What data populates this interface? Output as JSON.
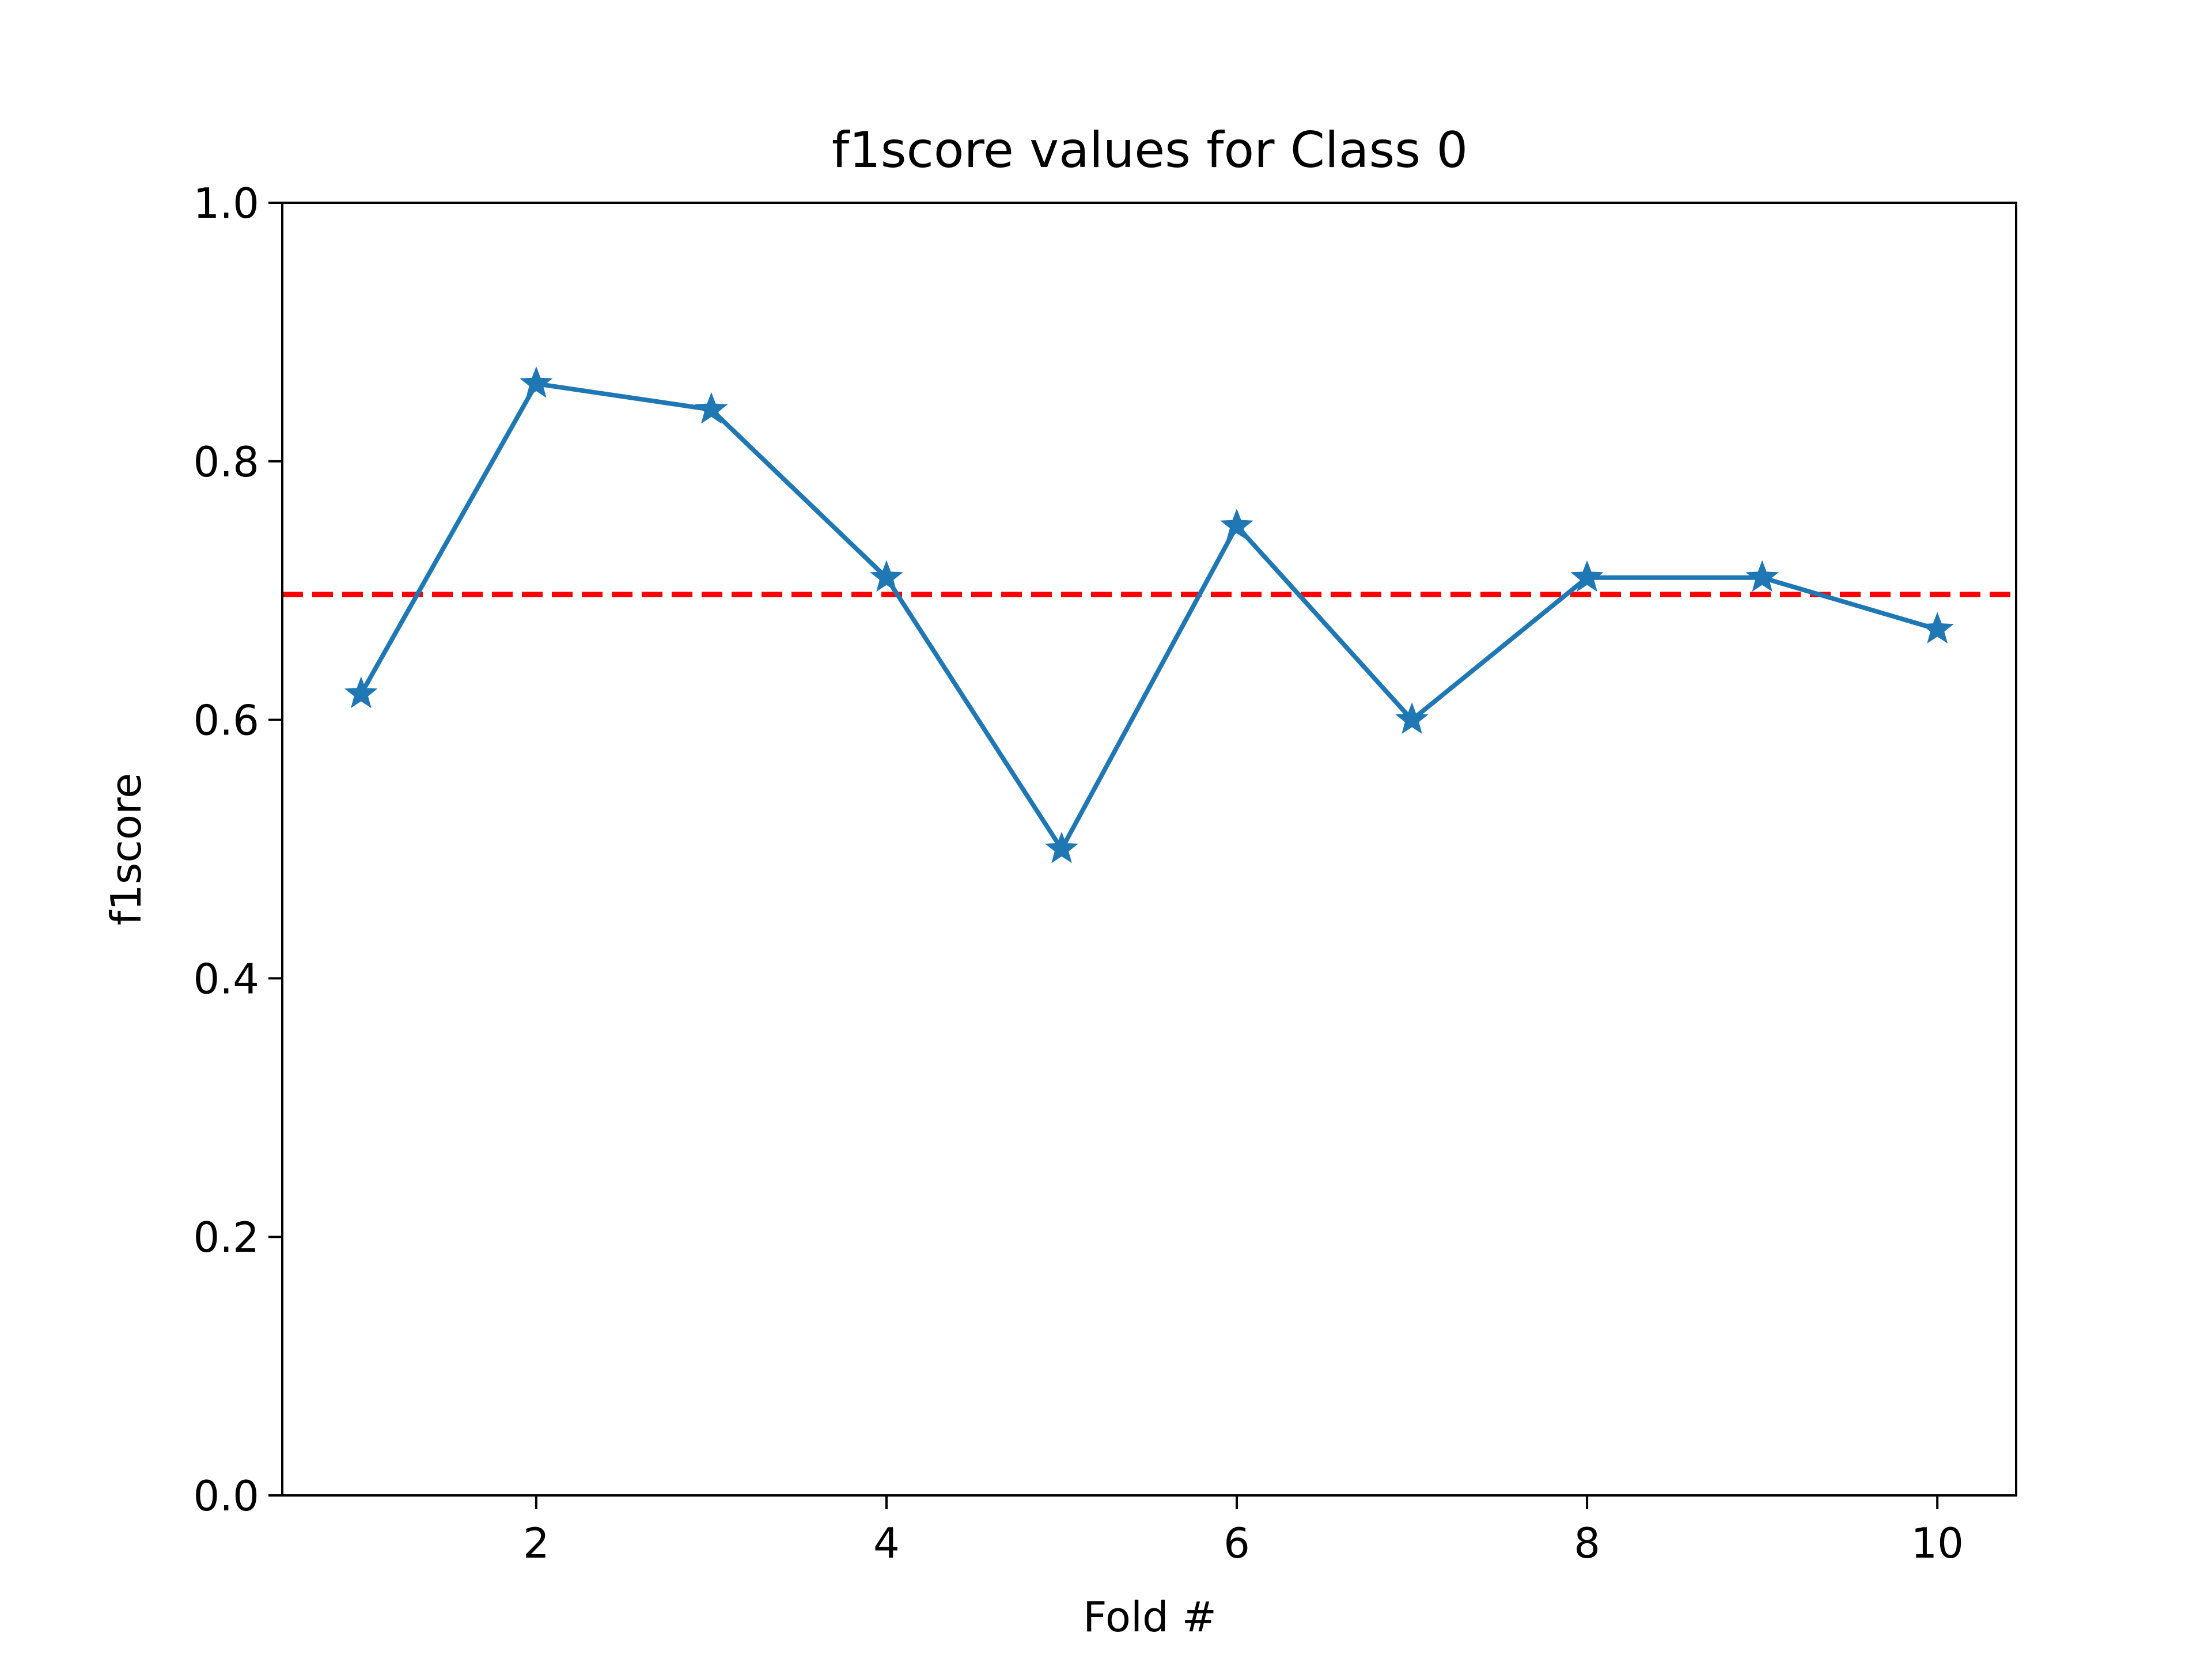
{
  "chart_data": {
    "type": "line",
    "title": "f1score values for Class 0",
    "xlabel": "Fold #",
    "ylabel": "f1score",
    "xlim": [
      0.55,
      10.45
    ],
    "ylim": [
      0.0,
      1.0
    ],
    "xticks": [
      2,
      4,
      6,
      8,
      10
    ],
    "xtick_labels": [
      "2",
      "4",
      "6",
      "8",
      "10"
    ],
    "yticks": [
      0.0,
      0.2,
      0.4,
      0.6,
      0.8,
      1.0
    ],
    "ytick_labels": [
      "0.0",
      "0.2",
      "0.4",
      "0.6",
      "0.8",
      "1.0"
    ],
    "grid": false,
    "series": [
      {
        "x": [
          1,
          2,
          3,
          4,
          5,
          6,
          7,
          8,
          9,
          10
        ],
        "values": [
          0.62,
          0.86,
          0.84,
          0.71,
          0.5,
          0.75,
          0.6,
          0.71,
          0.71,
          0.67
        ],
        "color": "#1f77b4",
        "marker": "star"
      }
    ],
    "reference_line": {
      "y": 0.697,
      "color": "#ff0000",
      "style": "dashed"
    }
  }
}
